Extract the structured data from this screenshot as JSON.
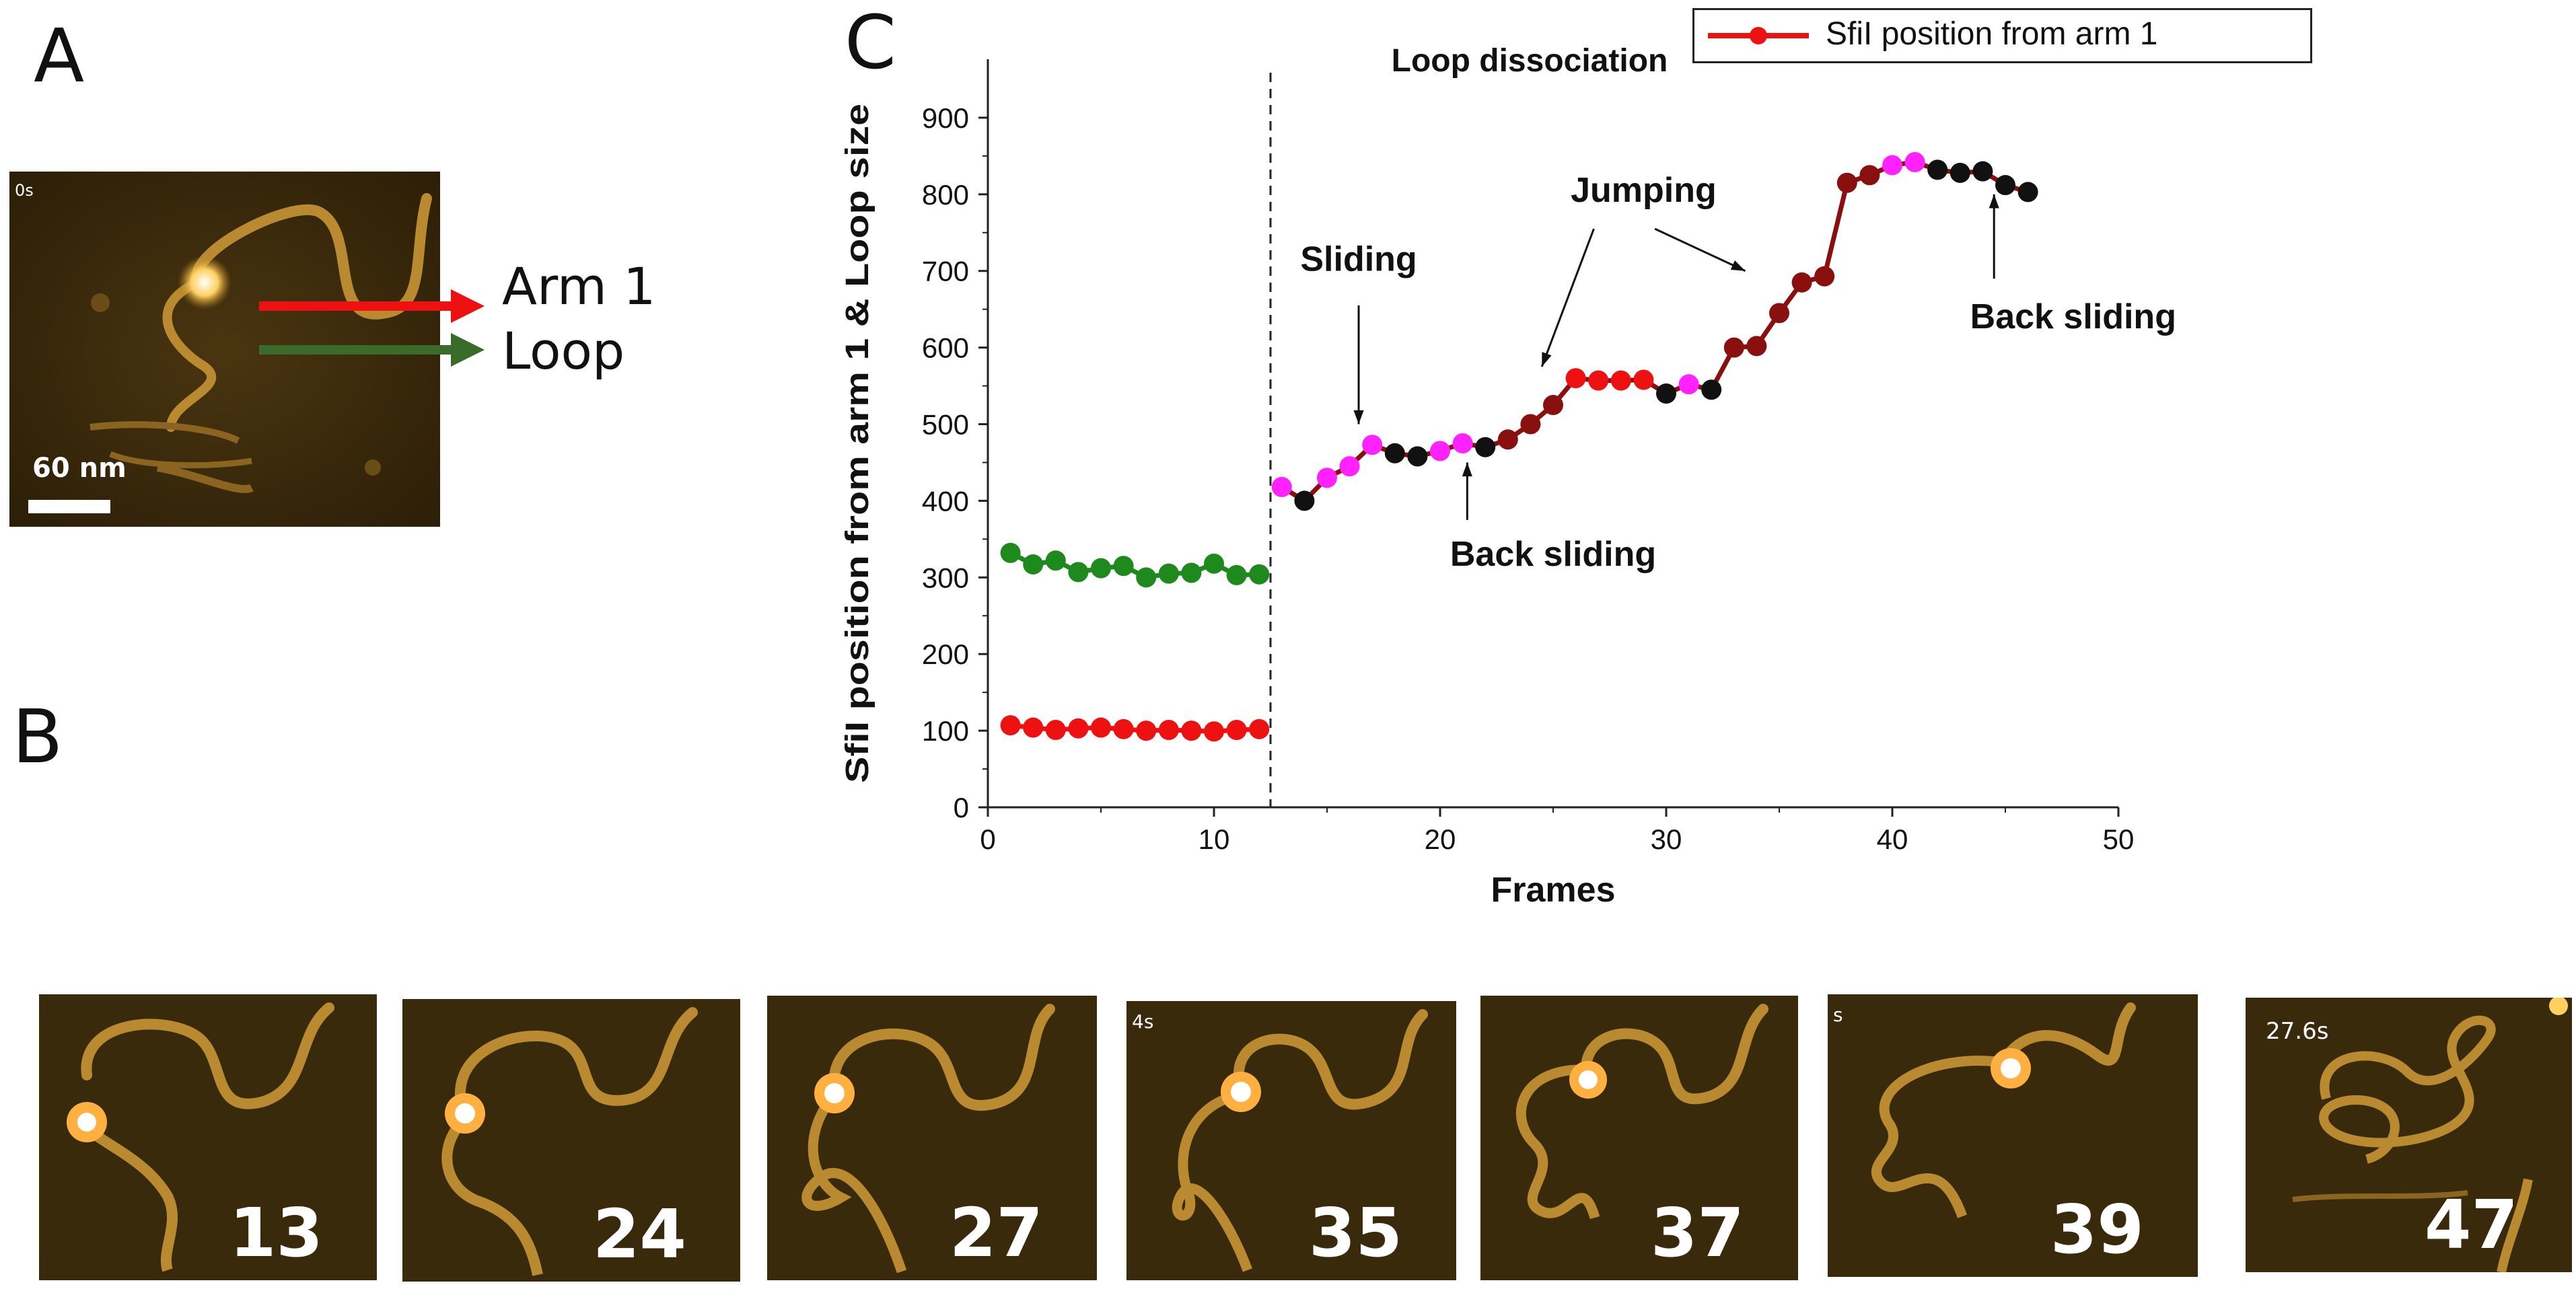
{
  "panels": {
    "a": "A",
    "b": "B",
    "c": "C"
  },
  "panel_a": {
    "time_label": "0s",
    "scale_bar": "60 nm",
    "arrows": [
      {
        "label": "Arm 1",
        "color": "#ee1111"
      },
      {
        "label": "Loop",
        "color": "#3a6b2a"
      }
    ]
  },
  "legend": {
    "label": "SfiI position from arm 1",
    "color": "#ee1111"
  },
  "frames": [
    {
      "number": "13",
      "time": ""
    },
    {
      "number": "24",
      "time": ""
    },
    {
      "number": "27",
      "time": ""
    },
    {
      "number": "35",
      "time": "4s"
    },
    {
      "number": "37",
      "time": ""
    },
    {
      "number": "39",
      "time": "s"
    },
    {
      "number": "47",
      "time": "27.6s"
    }
  ],
  "chart_data": {
    "type": "line",
    "xlabel": "Frames",
    "ylabel": "SfiI position from arm 1 & Loop size",
    "xlim": [
      0,
      50
    ],
    "ylim": [
      0,
      950
    ],
    "xticks": [
      0,
      10,
      20,
      30,
      40,
      50
    ],
    "yticks": [
      0,
      100,
      200,
      300,
      400,
      500,
      600,
      700,
      800,
      900
    ],
    "dissociation_frame": 12.5,
    "dissociation_label": "Loop dissociation",
    "series": [
      {
        "name": "Loop size",
        "color": "#1e8a1e",
        "points": [
          [
            1,
            332
          ],
          [
            2,
            317
          ],
          [
            3,
            322
          ],
          [
            4,
            307
          ],
          [
            5,
            312
          ],
          [
            6,
            315
          ],
          [
            7,
            300
          ],
          [
            8,
            305
          ],
          [
            9,
            306
          ],
          [
            10,
            318
          ],
          [
            11,
            303
          ],
          [
            12,
            304
          ]
        ]
      },
      {
        "name": "SfiI position from arm 1",
        "color": "#ee1111",
        "points": [
          [
            1,
            107
          ],
          [
            2,
            104
          ],
          [
            3,
            101
          ],
          [
            4,
            103
          ],
          [
            5,
            104
          ],
          [
            6,
            102
          ],
          [
            7,
            100
          ],
          [
            8,
            101
          ],
          [
            9,
            100
          ],
          [
            10,
            99
          ],
          [
            11,
            101
          ],
          [
            12,
            102
          ]
        ]
      },
      {
        "name": "SfiI position from arm 1 (after dissociation)",
        "line_color": "#8a1010",
        "points": [
          [
            13,
            418,
            "#ff22ff"
          ],
          [
            14,
            400,
            "#111111"
          ],
          [
            15,
            430,
            "#ff22ff"
          ],
          [
            16,
            445,
            "#ff22ff"
          ],
          [
            17,
            473,
            "#ff22ff"
          ],
          [
            18,
            462,
            "#111111"
          ],
          [
            19,
            458,
            "#111111"
          ],
          [
            20,
            465,
            "#ff22ff"
          ],
          [
            21,
            475,
            "#ff22ff"
          ],
          [
            22,
            470,
            "#111111"
          ],
          [
            23,
            480,
            "#8a1010"
          ],
          [
            24,
            500,
            "#8a1010"
          ],
          [
            25,
            525,
            "#8a1010"
          ],
          [
            26,
            560,
            "#ee1111"
          ],
          [
            27,
            557,
            "#ee1111"
          ],
          [
            28,
            557,
            "#ee1111"
          ],
          [
            29,
            558,
            "#ee1111"
          ],
          [
            30,
            540,
            "#111111"
          ],
          [
            31,
            552,
            "#ff22ff"
          ],
          [
            32,
            545,
            "#111111"
          ],
          [
            33,
            600,
            "#8a1010"
          ],
          [
            34,
            602,
            "#8a1010"
          ],
          [
            35,
            645,
            "#8a1010"
          ],
          [
            36,
            685,
            "#8a1010"
          ],
          [
            37,
            693,
            "#8a1010"
          ],
          [
            38,
            815,
            "#8a1010"
          ],
          [
            39,
            825,
            "#8a1010"
          ],
          [
            40,
            838,
            "#ff22ff"
          ],
          [
            41,
            842,
            "#ff22ff"
          ],
          [
            42,
            832,
            "#111111"
          ],
          [
            43,
            828,
            "#111111"
          ],
          [
            44,
            830,
            "#111111"
          ],
          [
            45,
            812,
            "#111111"
          ],
          [
            46,
            803,
            "#111111"
          ]
        ]
      }
    ],
    "annotations": [
      {
        "text": "Sliding",
        "x": 16.4,
        "y": 700
      },
      {
        "text": "Jumping",
        "x": 29,
        "y": 790
      },
      {
        "text": "Back sliding",
        "x": 25,
        "y": 315
      },
      {
        "text": "Back sliding",
        "x": 48,
        "y": 625
      }
    ]
  }
}
